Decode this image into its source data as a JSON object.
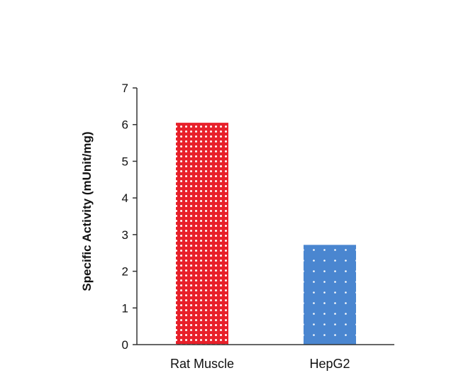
{
  "chart_data": {
    "type": "bar",
    "title": "",
    "xlabel": "",
    "ylabel": "Specific Activity (mUnit/mg)",
    "categories": [
      "Rat Muscle",
      "HepG2"
    ],
    "values": [
      6.05,
      2.72
    ],
    "ylim": [
      0,
      7
    ],
    "yticks": [
      0,
      1,
      2,
      3,
      4,
      5,
      6,
      7
    ],
    "grid": false,
    "legend": "none",
    "bar_colors": [
      "#e8202a",
      "#4a86d0"
    ],
    "pattern_dot_color": "#ffffff"
  }
}
